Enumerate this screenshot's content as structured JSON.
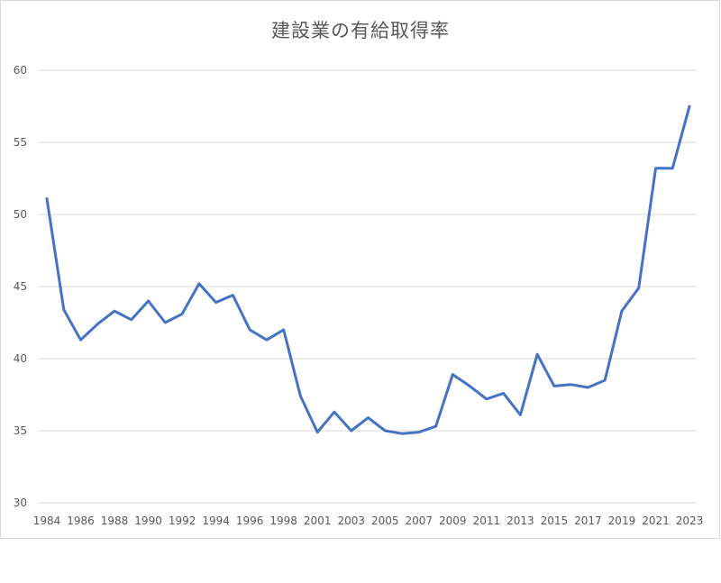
{
  "chart_data": {
    "type": "line",
    "title": "建設業の有給取得率",
    "xlabel": "",
    "ylabel": "",
    "ylim": [
      30,
      60
    ],
    "yticks": [
      "30",
      "35",
      "40",
      "45",
      "50",
      "55",
      "60"
    ],
    "xtick_labels": [
      "1984",
      "1986",
      "1988",
      "1990",
      "1992",
      "1994",
      "1996",
      "1998",
      "2001",
      "2003",
      "2005",
      "2007",
      "2009",
      "2011",
      "2013",
      "2015",
      "2017",
      "2019",
      "2021",
      "2023"
    ],
    "grid": true,
    "legend": "none",
    "line_color": "#4472c4",
    "series": [
      {
        "values": [
          51.1,
          43.4,
          41.3,
          42.4,
          43.3,
          42.7,
          44.0,
          42.5,
          43.1,
          45.2,
          43.9,
          44.4,
          42.0,
          41.3,
          42.0,
          37.4,
          34.9,
          36.3,
          35.0,
          35.9,
          35.0,
          34.8,
          34.9,
          35.3,
          38.9,
          38.1,
          37.2,
          37.6,
          36.1,
          40.3,
          38.1,
          38.2,
          38.0,
          38.5,
          43.3,
          44.9,
          53.2,
          53.2,
          57.5
        ]
      }
    ]
  }
}
